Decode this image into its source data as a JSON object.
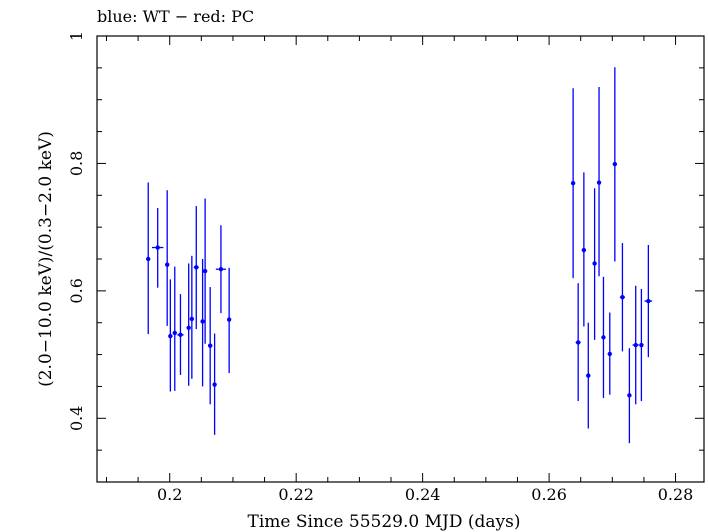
{
  "chart_data": {
    "type": "scatter",
    "title": "blue: WT − red: PC",
    "xlabel": "Time Since 55529.0 MJD (days)",
    "ylabel": "(2.0−10.0 keV)/(0.3−2.0 keV)",
    "xlim": [
      0.1885,
      0.2845
    ],
    "ylim": [
      0.3,
      1.0
    ],
    "x_ticks": [
      0.2,
      0.22,
      0.24,
      0.26,
      0.28
    ],
    "x_tick_labels": [
      "0.2",
      "0.22",
      "0.24",
      "0.26",
      "0.28"
    ],
    "y_ticks": [
      0.4,
      0.6,
      0.8,
      1.0
    ],
    "y_tick_labels": [
      "0.4",
      "0.6",
      "0.8",
      "1"
    ],
    "grid": false,
    "colors": {
      "WT": "#0000ff",
      "PC": "#ff0000",
      "axes": "#000000"
    },
    "series": [
      {
        "name": "WT",
        "color": "#0000ff",
        "points": [
          {
            "x": 0.1966,
            "y": 0.65,
            "xerr": 0.0002,
            "ylo": 0.532,
            "yhi": 0.77
          },
          {
            "x": 0.1981,
            "y": 0.668,
            "xerr": 0.0009,
            "ylo": 0.605,
            "yhi": 0.73
          },
          {
            "x": 0.1996,
            "y": 0.641,
            "xerr": 0.0002,
            "ylo": 0.545,
            "yhi": 0.758
          },
          {
            "x": 0.2001,
            "y": 0.529,
            "xerr": 0.0002,
            "ylo": 0.442,
            "yhi": 0.618
          },
          {
            "x": 0.2008,
            "y": 0.534,
            "xerr": 0.0002,
            "ylo": 0.443,
            "yhi": 0.638
          },
          {
            "x": 0.2017,
            "y": 0.531,
            "xerr": 0.0005,
            "ylo": 0.468,
            "yhi": 0.595
          },
          {
            "x": 0.203,
            "y": 0.542,
            "xerr": 0.0002,
            "ylo": 0.451,
            "yhi": 0.643
          },
          {
            "x": 0.2035,
            "y": 0.556,
            "xerr": 0.0002,
            "ylo": 0.462,
            "yhi": 0.655
          },
          {
            "x": 0.2042,
            "y": 0.637,
            "xerr": 0.0004,
            "ylo": 0.54,
            "yhi": 0.733
          },
          {
            "x": 0.2052,
            "y": 0.552,
            "xerr": 0.0002,
            "ylo": 0.45,
            "yhi": 0.65
          },
          {
            "x": 0.2056,
            "y": 0.631,
            "xerr": 0.0003,
            "ylo": 0.517,
            "yhi": 0.745
          },
          {
            "x": 0.2064,
            "y": 0.514,
            "xerr": 0.0003,
            "ylo": 0.422,
            "yhi": 0.606
          },
          {
            "x": 0.2071,
            "y": 0.453,
            "xerr": 0.0002,
            "ylo": 0.374,
            "yhi": 0.533
          },
          {
            "x": 0.2081,
            "y": 0.634,
            "xerr": 0.0008,
            "ylo": 0.565,
            "yhi": 0.703
          },
          {
            "x": 0.2094,
            "y": 0.555,
            "xerr": 0.0002,
            "ylo": 0.471,
            "yhi": 0.636
          },
          {
            "x": 0.2638,
            "y": 0.769,
            "xerr": 0.0002,
            "ylo": 0.62,
            "yhi": 0.918
          },
          {
            "x": 0.2646,
            "y": 0.519,
            "xerr": 0.0004,
            "ylo": 0.427,
            "yhi": 0.612
          },
          {
            "x": 0.2655,
            "y": 0.664,
            "xerr": 0.0002,
            "ylo": 0.544,
            "yhi": 0.786
          },
          {
            "x": 0.2662,
            "y": 0.467,
            "xerr": 0.0003,
            "ylo": 0.384,
            "yhi": 0.55
          },
          {
            "x": 0.2672,
            "y": 0.643,
            "xerr": 0.0002,
            "ylo": 0.523,
            "yhi": 0.761
          },
          {
            "x": 0.2679,
            "y": 0.77,
            "xerr": 0.0003,
            "ylo": 0.623,
            "yhi": 0.92
          },
          {
            "x": 0.2686,
            "y": 0.527,
            "xerr": 0.0003,
            "ylo": 0.432,
            "yhi": 0.622
          },
          {
            "x": 0.2696,
            "y": 0.501,
            "xerr": 0.0002,
            "ylo": 0.437,
            "yhi": 0.566
          },
          {
            "x": 0.2704,
            "y": 0.799,
            "xerr": 0.0002,
            "ylo": 0.646,
            "yhi": 0.951
          },
          {
            "x": 0.2716,
            "y": 0.59,
            "xerr": 0.0004,
            "ylo": 0.505,
            "yhi": 0.675
          },
          {
            "x": 0.2727,
            "y": 0.436,
            "xerr": 0.0002,
            "ylo": 0.361,
            "yhi": 0.51
          },
          {
            "x": 0.2737,
            "y": 0.515,
            "xerr": 0.0005,
            "ylo": 0.422,
            "yhi": 0.608
          },
          {
            "x": 0.2746,
            "y": 0.515,
            "xerr": 0.0003,
            "ylo": 0.427,
            "yhi": 0.603
          },
          {
            "x": 0.2757,
            "y": 0.584,
            "xerr": 0.0006,
            "ylo": 0.496,
            "yhi": 0.672
          }
        ]
      }
    ]
  }
}
